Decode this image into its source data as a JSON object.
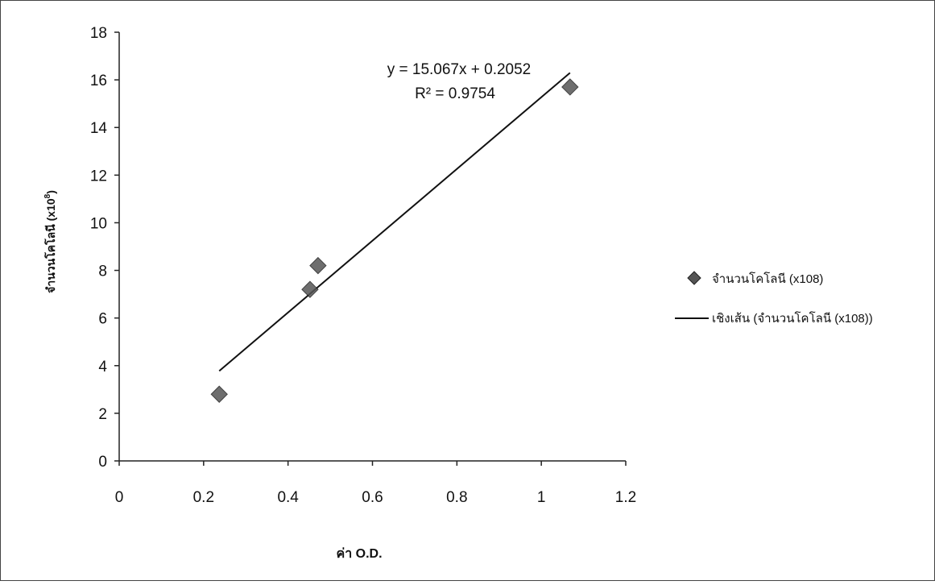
{
  "chart_data": {
    "type": "scatter",
    "xlabel": "ค่า O.D.",
    "ylabel": "จำนวนโคโลนี (x10^8)",
    "ylabel_main": "จำนวนโคโลนี (x10",
    "ylabel_sup": "8",
    "ylabel_close": ")",
    "xlim": [
      0,
      1.2
    ],
    "ylim": [
      0,
      18
    ],
    "x_ticks": [
      "0",
      "0.2",
      "0.4",
      "0.6",
      "0.8",
      "1",
      "1.2"
    ],
    "y_ticks": [
      "0",
      "2",
      "4",
      "6",
      "8",
      "10",
      "12",
      "14",
      "16",
      "18"
    ],
    "series": [
      {
        "name": "จำนวนโคโลนี (x108)",
        "points": [
          {
            "x": 0.237,
            "y": 2.8
          },
          {
            "x": 0.452,
            "y": 7.2
          },
          {
            "x": 0.471,
            "y": 8.2
          },
          {
            "x": 1.068,
            "y": 15.7
          }
        ],
        "color": "#555555"
      }
    ],
    "trendline": {
      "name": "เชิงเส้น (จำนวนโคโลนี (x108))",
      "slope": 15.067,
      "intercept": 0.2052,
      "x_range": [
        0.237,
        1.068
      ],
      "equation": "y = 15.067x + 0.2052",
      "r2": "R² = 0.9754",
      "color": "#111111"
    },
    "legend": {
      "position": "right",
      "marker_label": "จำนวนโคโลนี (x108)",
      "line_label": "เชิงเส้น (จำนวนโคโลนี (x108))"
    },
    "grid": false
  }
}
